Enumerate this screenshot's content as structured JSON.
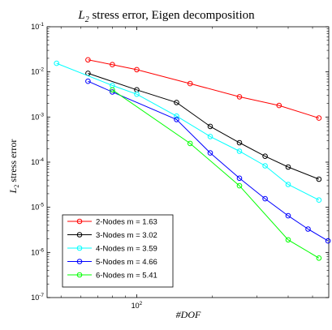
{
  "chart_data": {
    "type": "line",
    "title": {
      "math": "L",
      "sub": "2",
      "rest": " stress error, Eigen decomposition"
    },
    "xlabel": "#DOF",
    "ylabel": {
      "math": "L",
      "sub": "2",
      "rest": " stress error"
    },
    "xscale": "log",
    "yscale": "log",
    "xlim": [
      44,
      580
    ],
    "ylim": [
      1e-07,
      0.1
    ],
    "x_ticks": [
      {
        "value": 100,
        "base": "10",
        "exp": "2"
      }
    ],
    "y_ticks": [
      {
        "value": 1e-07,
        "base": "10",
        "exp": "-7"
      },
      {
        "value": 1e-06,
        "base": "10",
        "exp": "-6"
      },
      {
        "value": 1e-05,
        "base": "10",
        "exp": "-5"
      },
      {
        "value": 0.0001,
        "base": "10",
        "exp": "-4"
      },
      {
        "value": 0.001,
        "base": "10",
        "exp": "-3"
      },
      {
        "value": 0.01,
        "base": "10",
        "exp": "-2"
      },
      {
        "value": 0.1,
        "base": "10",
        "exp": "-1"
      }
    ],
    "legend_position": "bottom-left",
    "series": [
      {
        "name": "2-Nodes m = 1.63",
        "color": "#ff0000",
        "x": [
          64,
          80,
          100,
          163,
          256,
          368,
          530
        ],
        "y": [
          0.0185,
          0.0145,
          0.0112,
          0.0055,
          0.0028,
          0.0018,
          0.00095
        ]
      },
      {
        "name": "3-Nodes m = 3.02",
        "color": "#000000",
        "x": [
          64,
          100,
          144,
          196,
          256,
          324,
          400,
          530
        ],
        "y": [
          0.0093,
          0.004,
          0.0021,
          0.00062,
          0.00027,
          0.000135,
          7.8e-05,
          4.2e-05
        ]
      },
      {
        "name": "4-Nodes m = 3.59",
        "color": "#00ffff",
        "x": [
          48,
          80,
          100,
          144,
          196,
          256,
          324,
          400,
          530
        ],
        "y": [
          0.0155,
          0.005,
          0.0032,
          0.00105,
          0.00037,
          0.000175,
          8.3e-05,
          3.2e-05,
          1.45e-05
        ]
      },
      {
        "name": "5-Nodes m = 4.66",
        "color": "#0000ff",
        "x": [
          64,
          80,
          144,
          196,
          256,
          324,
          400,
          480,
          576
        ],
        "y": [
          0.0062,
          0.0036,
          0.00088,
          0.00016,
          4.4e-05,
          1.55e-05,
          6.5e-06,
          3.3e-06,
          1.8e-06
        ]
      },
      {
        "name": "6-Nodes m = 5.41",
        "color": "#00ff00",
        "x": [
          80,
          163,
          256,
          400,
          530
        ],
        "y": [
          0.004,
          0.00026,
          3e-05,
          1.9e-06,
          7.5e-07
        ]
      }
    ]
  }
}
